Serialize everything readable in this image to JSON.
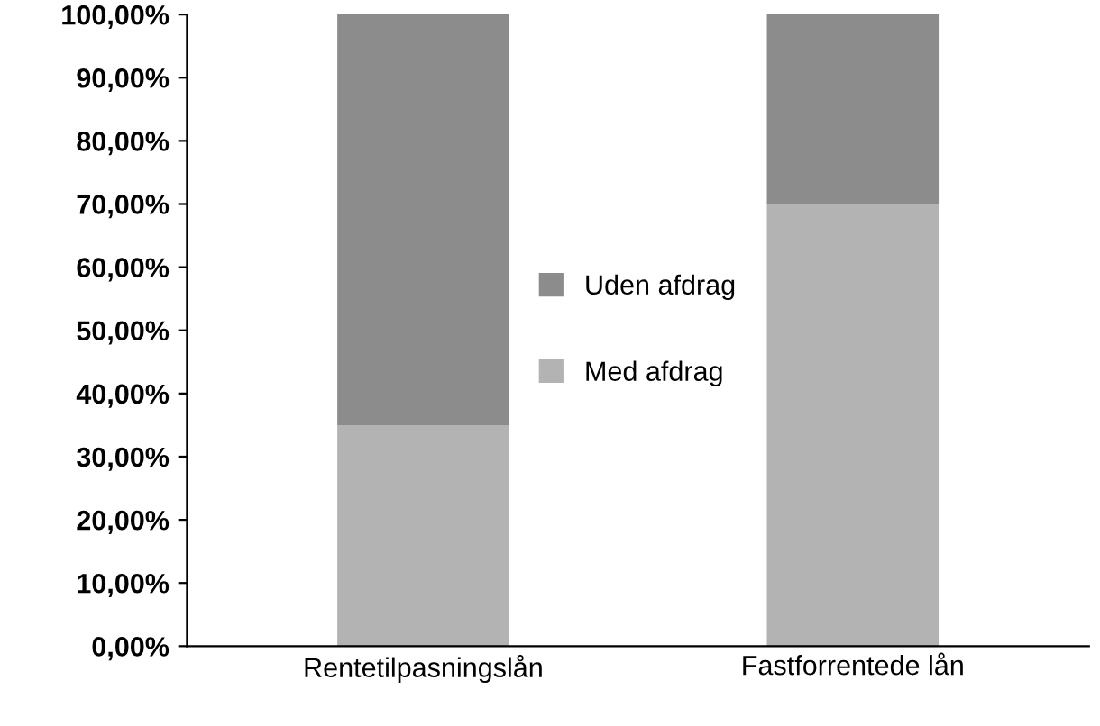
{
  "chart_data": {
    "type": "bar",
    "stacked": true,
    "categories": [
      "Rentetilpasningslån",
      "Fastforrentede lån"
    ],
    "series": [
      {
        "name": "Med afdrag",
        "color": "#b3b3b3",
        "values": [
          35,
          70
        ]
      },
      {
        "name": "Uden afdrag",
        "color": "#8c8c8c",
        "values": [
          65,
          30
        ]
      }
    ],
    "ylim": [
      0,
      100
    ],
    "yticks": [
      {
        "value": 0,
        "label": "0,00%"
      },
      {
        "value": 10,
        "label": "10,00%"
      },
      {
        "value": 20,
        "label": "20,00%"
      },
      {
        "value": 30,
        "label": "30,00%"
      },
      {
        "value": 40,
        "label": "40,00%"
      },
      {
        "value": 50,
        "label": "50,00%"
      },
      {
        "value": 60,
        "label": "60,00%"
      },
      {
        "value": 70,
        "label": "70,00%"
      },
      {
        "value": 80,
        "label": "80,00%"
      },
      {
        "value": 90,
        "label": "90,00%"
      },
      {
        "value": 100,
        "label": "100,00%"
      }
    ],
    "grid": false,
    "legend": "center"
  }
}
